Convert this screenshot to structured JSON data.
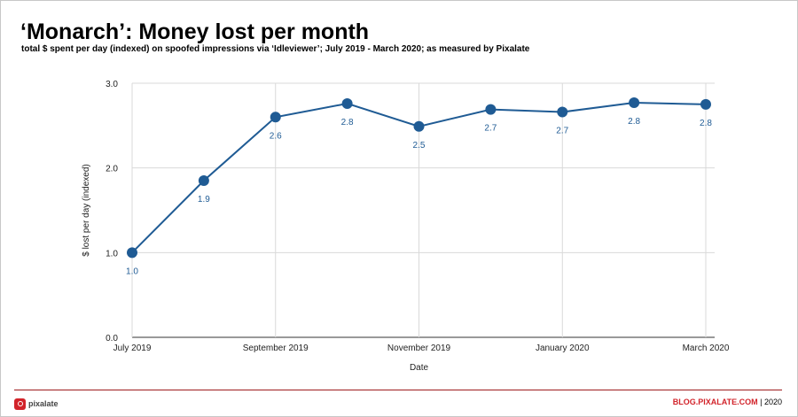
{
  "header": {
    "title": "‘Monarch’: Money lost per month",
    "subtitle": "total $ spent per day (indexed) on spoofed impressions via ‘Idleviewer’; July 2019 - March 2020; as measured by Pixalate"
  },
  "chart_data": {
    "type": "line",
    "x": [
      "July 2019",
      "August 2019",
      "September 2019",
      "October 2019",
      "November 2019",
      "December 2019",
      "January 2020",
      "February 2020",
      "March 2020"
    ],
    "x_tick_labels": [
      "July 2019",
      "",
      "September 2019",
      "",
      "November 2019",
      "",
      "January 2020",
      "",
      "March 2020"
    ],
    "values": [
      1.0,
      1.85,
      2.6,
      2.76,
      2.49,
      2.69,
      2.66,
      2.77,
      2.75
    ],
    "data_labels": [
      "1.0",
      "1.9",
      "2.6",
      "2.8",
      "2.5",
      "2.7",
      "2.7",
      "2.8",
      "2.8"
    ],
    "y_ticks": [
      "0.0",
      "1.0",
      "2.0",
      "3.0"
    ],
    "ylim": [
      0,
      3
    ],
    "xlabel": "Date",
    "ylabel": "$ lost per day (indexed)",
    "grid": true,
    "colors": {
      "line": "#1f5b94",
      "label": "#1f5b94",
      "grid": "#d9d9d9"
    }
  },
  "footer": {
    "logo_text": "pixalate",
    "site": "BLOG.PIXALATE.COM",
    "separator": "|",
    "year": "2020"
  }
}
